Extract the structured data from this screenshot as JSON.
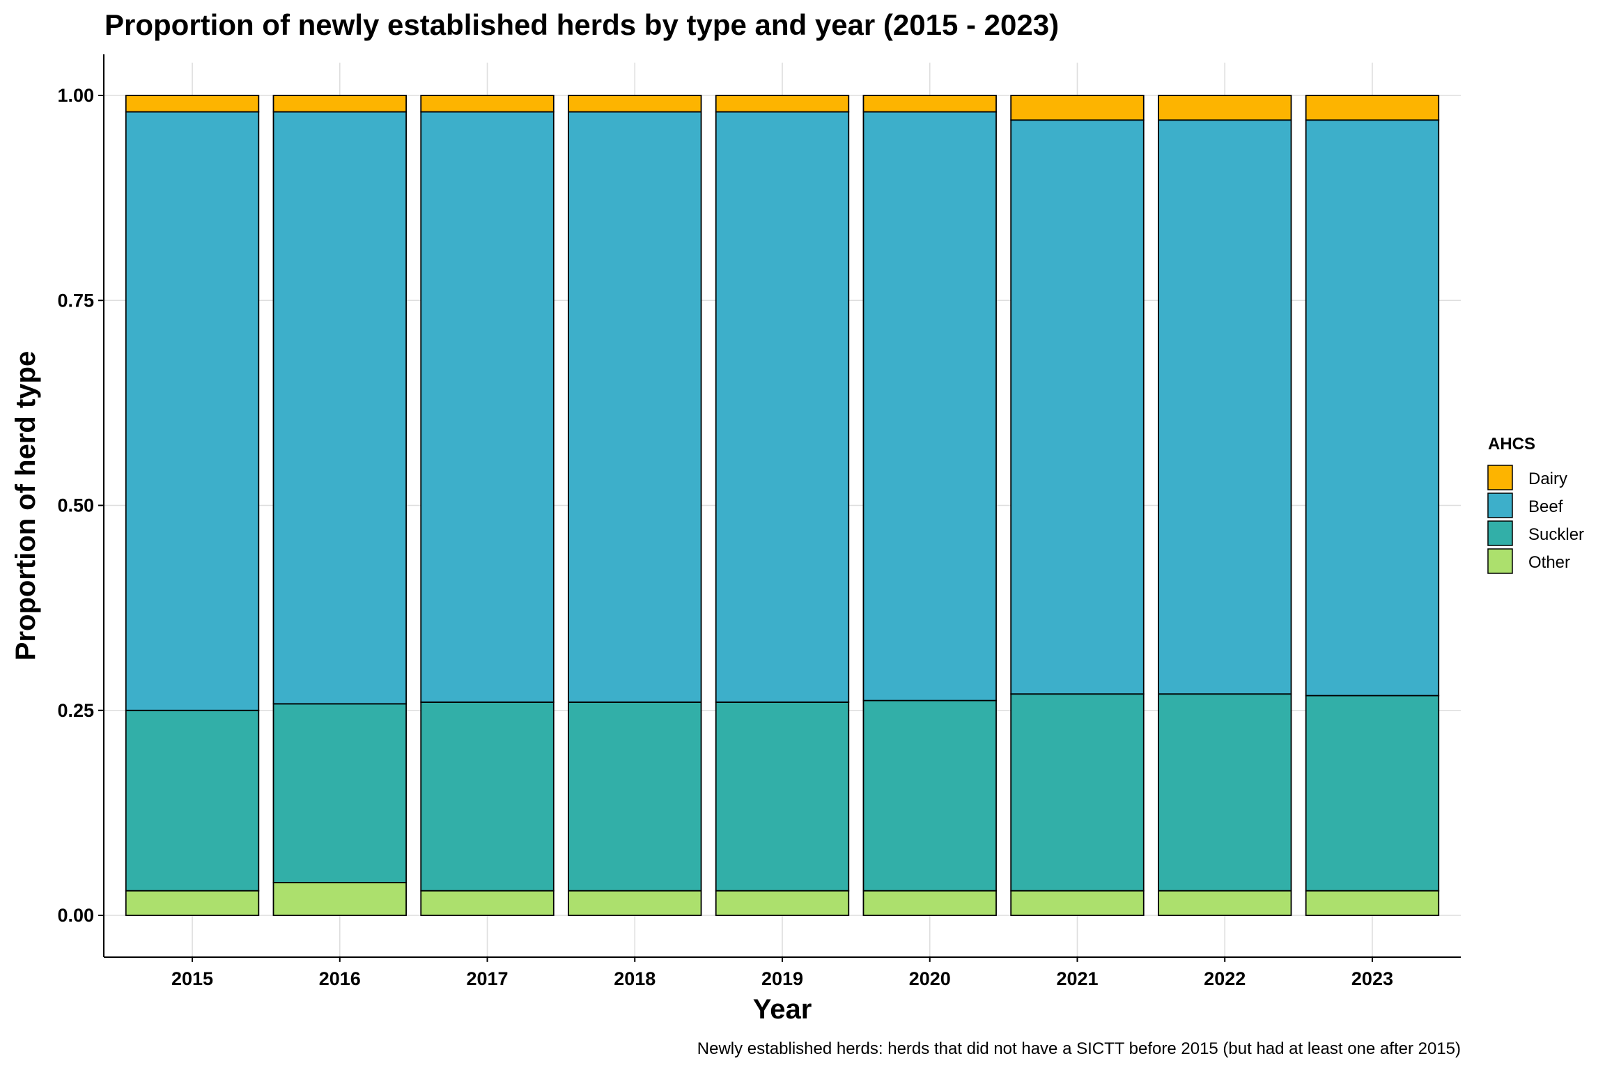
{
  "chart_data": {
    "type": "bar",
    "stacked": true,
    "title": "Proportion of newly established herds by type and year (2015 - 2023)",
    "xlabel": "Year",
    "ylabel": "Proportion of herd type",
    "ylim": [
      -0.05,
      1.04
    ],
    "yticks": [
      "0.00",
      "0.25",
      "0.50",
      "0.75",
      "1.00"
    ],
    "ytick_values": [
      0,
      0.25,
      0.5,
      0.75,
      1.0
    ],
    "categories": [
      "2015",
      "2016",
      "2017",
      "2018",
      "2019",
      "2020",
      "2021",
      "2022",
      "2023"
    ],
    "legend_title": "AHCS",
    "legend_position": "right",
    "series": [
      {
        "name": "Dairy",
        "color": "#FDB400",
        "values": [
          0.02,
          0.02,
          0.02,
          0.02,
          0.02,
          0.02,
          0.03,
          0.03,
          0.03
        ]
      },
      {
        "name": "Beef",
        "color": "#3DAFCA",
        "values": [
          0.73,
          0.722,
          0.72,
          0.72,
          0.72,
          0.718,
          0.7,
          0.7,
          0.702
        ]
      },
      {
        "name": "Suckler",
        "color": "#32AFA8",
        "values": [
          0.22,
          0.218,
          0.23,
          0.23,
          0.23,
          0.232,
          0.24,
          0.24,
          0.238
        ]
      },
      {
        "name": "Other",
        "color": "#ACE06D",
        "values": [
          0.03,
          0.04,
          0.03,
          0.03,
          0.03,
          0.03,
          0.03,
          0.03,
          0.03
        ]
      }
    ],
    "grid": true,
    "caption": "Newly established herds: herds that did not have a SICTT before 2015 (but had at least one after 2015)"
  }
}
